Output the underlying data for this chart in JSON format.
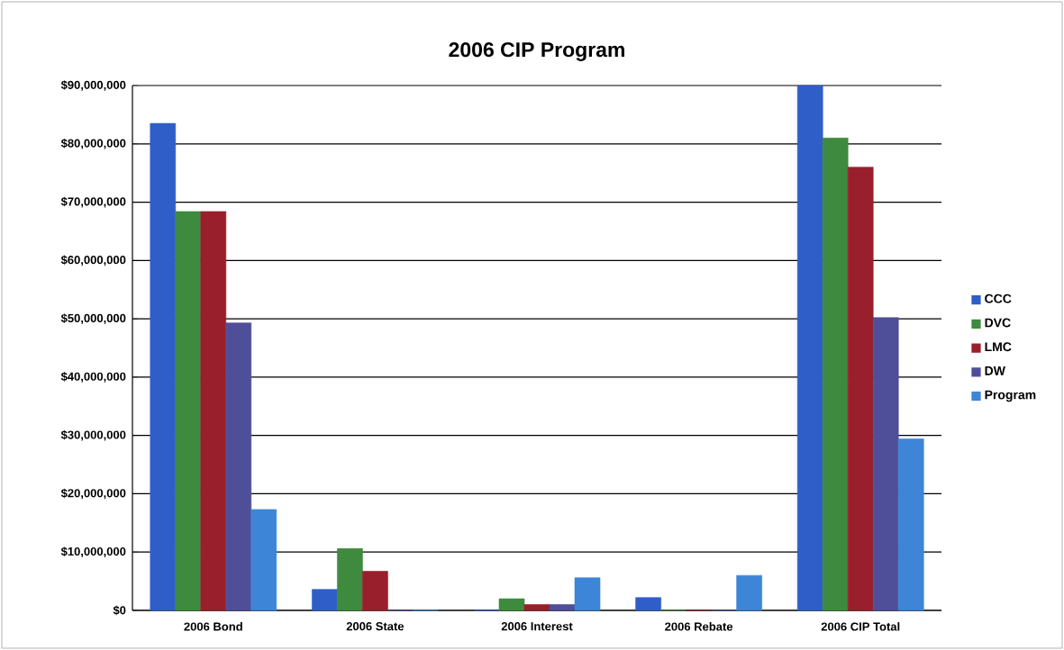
{
  "chart_data": {
    "type": "bar",
    "title": "2006 CIP Program",
    "categories": [
      "2006 Bond",
      "2006 State",
      "2006 Interest",
      "2006 Rebate",
      "2006 CIP Total"
    ],
    "series": [
      {
        "name": "CCC",
        "color": "#2f5ec9",
        "values": [
          83500000,
          3600000,
          0,
          2200000,
          90000000
        ]
      },
      {
        "name": "DVC",
        "color": "#3e8a3e",
        "values": [
          68400000,
          10600000,
          2000000,
          0,
          81000000
        ]
      },
      {
        "name": "LMC",
        "color": "#9a1f2c",
        "values": [
          68400000,
          6700000,
          1000000,
          0,
          76000000
        ]
      },
      {
        "name": "DW",
        "color": "#4f4f99",
        "values": [
          49300000,
          0,
          1000000,
          0,
          50200000
        ]
      },
      {
        "name": "Program",
        "color": "#3d85d6",
        "values": [
          17300000,
          0,
          5600000,
          6000000,
          29400000
        ]
      }
    ],
    "ylim": [
      0,
      90000000
    ],
    "yticks": [
      {
        "value": 0,
        "label": "$0"
      },
      {
        "value": 10000000,
        "label": "$10,000,000"
      },
      {
        "value": 20000000,
        "label": "$20,000,000"
      },
      {
        "value": 30000000,
        "label": "$30,000,000"
      },
      {
        "value": 40000000,
        "label": "$40,000,000"
      },
      {
        "value": 50000000,
        "label": "$50,000,000"
      },
      {
        "value": 60000000,
        "label": "$60,000,000"
      },
      {
        "value": 70000000,
        "label": "$70,000,000"
      },
      {
        "value": 80000000,
        "label": "$80,000,000"
      },
      {
        "value": 90000000,
        "label": "$90,000,000"
      }
    ],
    "grid": "y",
    "legend": "right"
  }
}
